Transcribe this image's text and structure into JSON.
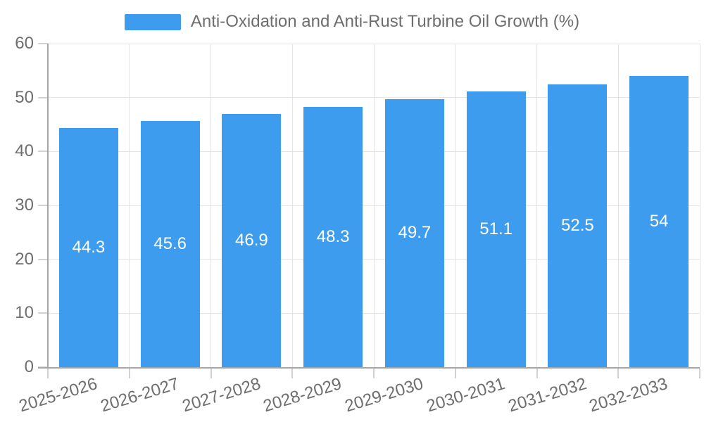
{
  "chart_data": {
    "type": "bar",
    "title": "Anti-Oxidation and Anti-Rust Turbine Oil Growth (%)",
    "categories": [
      "2025-2026",
      "2026-2027",
      "2027-2028",
      "2028-2029",
      "2029-2030",
      "2030-2031",
      "2031-2032",
      "2032-2033"
    ],
    "values": [
      44.3,
      45.6,
      46.9,
      48.3,
      49.7,
      51.1,
      52.5,
      54
    ],
    "series": [
      {
        "name": "Anti-Oxidation and Anti-Rust Turbine Oil Growth (%)",
        "values": [
          44.3,
          45.6,
          46.9,
          48.3,
          49.7,
          51.1,
          52.5,
          54
        ]
      }
    ],
    "xlabel": "",
    "ylabel": "",
    "ylim": [
      0,
      60
    ],
    "yticks": [
      0,
      10,
      20,
      30,
      40,
      50,
      60
    ],
    "grid": true,
    "legend_position": "top-center",
    "value_label_position": "inside-center",
    "colors": {
      "bar": "#3D9CEE",
      "value_label": "#FFFFFF",
      "axis_text": "#6E6E6E",
      "gridline": "#E4E4E4",
      "tick": "#D2D2D2",
      "axis_line": "#A6A6A6"
    }
  }
}
